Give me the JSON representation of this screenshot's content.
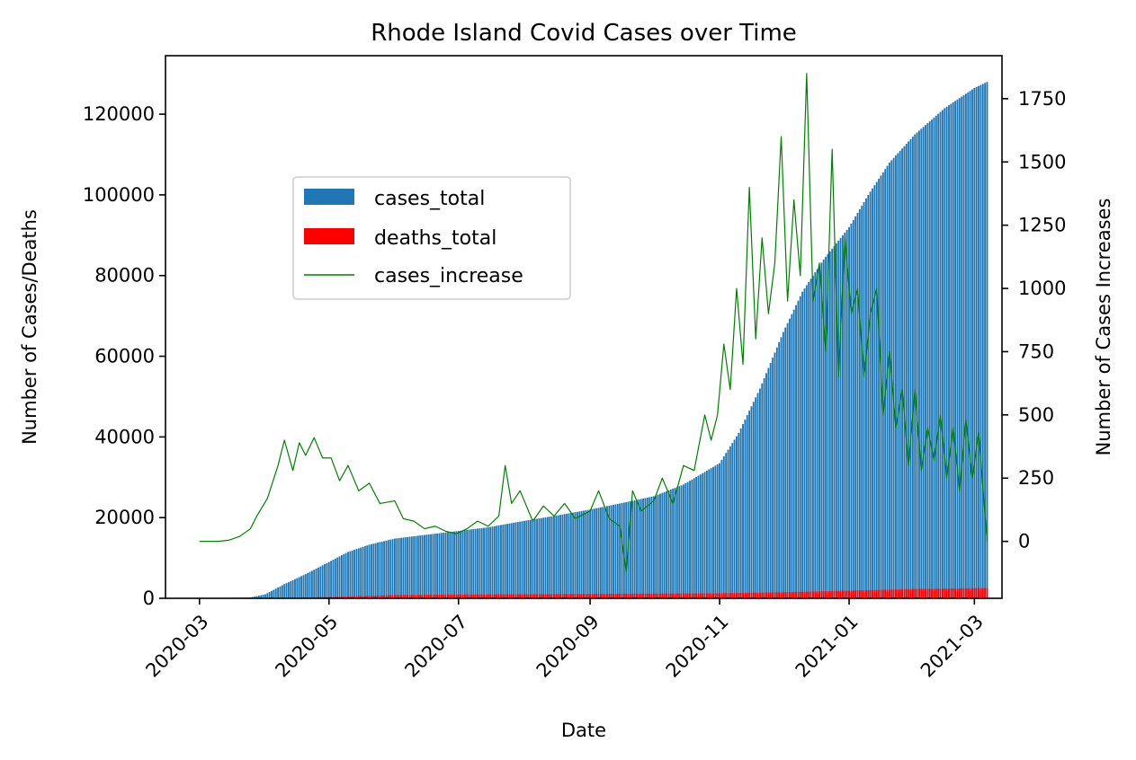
{
  "chart_data": {
    "type": "bar",
    "title": "Rhode Island Covid Cases over Time",
    "xlabel": "Date",
    "ylabel": "Number of Cases/Deaths",
    "ylabel_right": "Number of Cases Increases",
    "x_range": [
      "2020-02-14",
      "2021-03-14"
    ],
    "x_ticks": [
      "2020-03",
      "2020-05",
      "2020-07",
      "2020-09",
      "2020-11",
      "2021-01",
      "2021-03"
    ],
    "ylim": [
      0,
      134500
    ],
    "y_ticks": [
      0,
      20000,
      40000,
      60000,
      80000,
      100000,
      120000
    ],
    "ylim_right": [
      -225,
      1920
    ],
    "y_ticks_right": [
      0,
      250,
      500,
      750,
      1000,
      1250,
      1500,
      1750
    ],
    "legend_position": "upper-left (inset)",
    "bar_start_date": "2020-03-01",
    "bar_end_date": "2021-03-07",
    "series": [
      {
        "name": "cases_total",
        "kind": "bar",
        "axis": "left",
        "color": "#1f77b4",
        "points": [
          [
            "2020-03-01",
            0
          ],
          [
            "2020-03-25",
            200
          ],
          [
            "2020-04-01",
            1000
          ],
          [
            "2020-04-10",
            3500
          ],
          [
            "2020-04-20",
            6000
          ],
          [
            "2020-05-01",
            9000
          ],
          [
            "2020-05-10",
            11500
          ],
          [
            "2020-05-20",
            13300
          ],
          [
            "2020-06-01",
            14800
          ],
          [
            "2020-06-15",
            15700
          ],
          [
            "2020-07-01",
            16700
          ],
          [
            "2020-07-15",
            17600
          ],
          [
            "2020-08-01",
            19200
          ],
          [
            "2020-08-15",
            20400
          ],
          [
            "2020-09-01",
            22000
          ],
          [
            "2020-09-15",
            23500
          ],
          [
            "2020-10-01",
            25300
          ],
          [
            "2020-10-15",
            28200
          ],
          [
            "2020-11-01",
            33500
          ],
          [
            "2020-11-10",
            41000
          ],
          [
            "2020-11-20",
            52000
          ],
          [
            "2020-12-01",
            66000
          ],
          [
            "2020-12-10",
            76000
          ],
          [
            "2020-12-20",
            84000
          ],
          [
            "2021-01-01",
            92000
          ],
          [
            "2021-01-10",
            100000
          ],
          [
            "2021-01-20",
            108000
          ],
          [
            "2021-02-01",
            115000
          ],
          [
            "2021-02-15",
            121500
          ],
          [
            "2021-03-01",
            126500
          ],
          [
            "2021-03-07",
            128000
          ]
        ]
      },
      {
        "name": "deaths_total",
        "kind": "bar",
        "axis": "left",
        "color": "#ff0000",
        "points": [
          [
            "2020-03-01",
            0
          ],
          [
            "2020-04-01",
            20
          ],
          [
            "2020-05-01",
            300
          ],
          [
            "2020-06-01",
            800
          ],
          [
            "2020-07-01",
            950
          ],
          [
            "2020-09-01",
            1080
          ],
          [
            "2020-11-01",
            1250
          ],
          [
            "2020-12-01",
            1500
          ],
          [
            "2021-01-01",
            1900
          ],
          [
            "2021-02-01",
            2300
          ],
          [
            "2021-03-07",
            2550
          ]
        ]
      },
      {
        "name": "cases_increase",
        "kind": "line",
        "axis": "right",
        "color": "#008000",
        "points": [
          [
            "2020-03-01",
            0
          ],
          [
            "2020-03-10",
            0
          ],
          [
            "2020-03-15",
            5
          ],
          [
            "2020-03-20",
            20
          ],
          [
            "2020-03-25",
            50
          ],
          [
            "2020-03-28",
            100
          ],
          [
            "2020-04-02",
            170
          ],
          [
            "2020-04-07",
            300
          ],
          [
            "2020-04-10",
            400
          ],
          [
            "2020-04-14",
            280
          ],
          [
            "2020-04-17",
            390
          ],
          [
            "2020-04-20",
            340
          ],
          [
            "2020-04-24",
            410
          ],
          [
            "2020-04-28",
            330
          ],
          [
            "2020-05-02",
            330
          ],
          [
            "2020-05-06",
            240
          ],
          [
            "2020-05-10",
            300
          ],
          [
            "2020-05-15",
            200
          ],
          [
            "2020-05-20",
            230
          ],
          [
            "2020-05-25",
            150
          ],
          [
            "2020-06-01",
            160
          ],
          [
            "2020-06-05",
            90
          ],
          [
            "2020-06-10",
            80
          ],
          [
            "2020-06-15",
            50
          ],
          [
            "2020-06-20",
            60
          ],
          [
            "2020-06-25",
            40
          ],
          [
            "2020-06-30",
            30
          ],
          [
            "2020-07-05",
            50
          ],
          [
            "2020-07-10",
            80
          ],
          [
            "2020-07-15",
            60
          ],
          [
            "2020-07-20",
            100
          ],
          [
            "2020-07-23",
            300
          ],
          [
            "2020-07-26",
            150
          ],
          [
            "2020-07-30",
            200
          ],
          [
            "2020-08-05",
            80
          ],
          [
            "2020-08-10",
            140
          ],
          [
            "2020-08-15",
            100
          ],
          [
            "2020-08-20",
            150
          ],
          [
            "2020-08-25",
            90
          ],
          [
            "2020-09-01",
            120
          ],
          [
            "2020-09-05",
            200
          ],
          [
            "2020-09-10",
            90
          ],
          [
            "2020-09-15",
            60
          ],
          [
            "2020-09-18",
            -120
          ],
          [
            "2020-09-21",
            200
          ],
          [
            "2020-09-25",
            120
          ],
          [
            "2020-10-01",
            160
          ],
          [
            "2020-10-05",
            250
          ],
          [
            "2020-10-10",
            150
          ],
          [
            "2020-10-15",
            300
          ],
          [
            "2020-10-20",
            280
          ],
          [
            "2020-10-25",
            500
          ],
          [
            "2020-10-28",
            400
          ],
          [
            "2020-10-31",
            500
          ],
          [
            "2020-11-03",
            780
          ],
          [
            "2020-11-06",
            600
          ],
          [
            "2020-11-09",
            1000
          ],
          [
            "2020-11-12",
            700
          ],
          [
            "2020-11-15",
            1400
          ],
          [
            "2020-11-18",
            800
          ],
          [
            "2020-11-21",
            1200
          ],
          [
            "2020-11-24",
            900
          ],
          [
            "2020-11-27",
            1100
          ],
          [
            "2020-11-30",
            1600
          ],
          [
            "2020-12-03",
            950
          ],
          [
            "2020-12-06",
            1350
          ],
          [
            "2020-12-09",
            1050
          ],
          [
            "2020-12-12",
            1850
          ],
          [
            "2020-12-15",
            950
          ],
          [
            "2020-12-18",
            1100
          ],
          [
            "2020-12-21",
            750
          ],
          [
            "2020-12-24",
            1550
          ],
          [
            "2020-12-27",
            650
          ],
          [
            "2020-12-30",
            1200
          ],
          [
            "2021-01-02",
            900
          ],
          [
            "2021-01-05",
            1000
          ],
          [
            "2021-01-08",
            650
          ],
          [
            "2021-01-11",
            900
          ],
          [
            "2021-01-14",
            1000
          ],
          [
            "2021-01-17",
            500
          ],
          [
            "2021-01-20",
            750
          ],
          [
            "2021-01-23",
            450
          ],
          [
            "2021-01-26",
            600
          ],
          [
            "2021-01-29",
            300
          ],
          [
            "2021-02-01",
            600
          ],
          [
            "2021-02-04",
            280
          ],
          [
            "2021-02-07",
            450
          ],
          [
            "2021-02-10",
            320
          ],
          [
            "2021-02-13",
            500
          ],
          [
            "2021-02-16",
            250
          ],
          [
            "2021-02-19",
            450
          ],
          [
            "2021-02-22",
            200
          ],
          [
            "2021-02-25",
            480
          ],
          [
            "2021-02-28",
            250
          ],
          [
            "2021-03-03",
            430
          ],
          [
            "2021-03-07",
            0
          ]
        ]
      }
    ]
  }
}
